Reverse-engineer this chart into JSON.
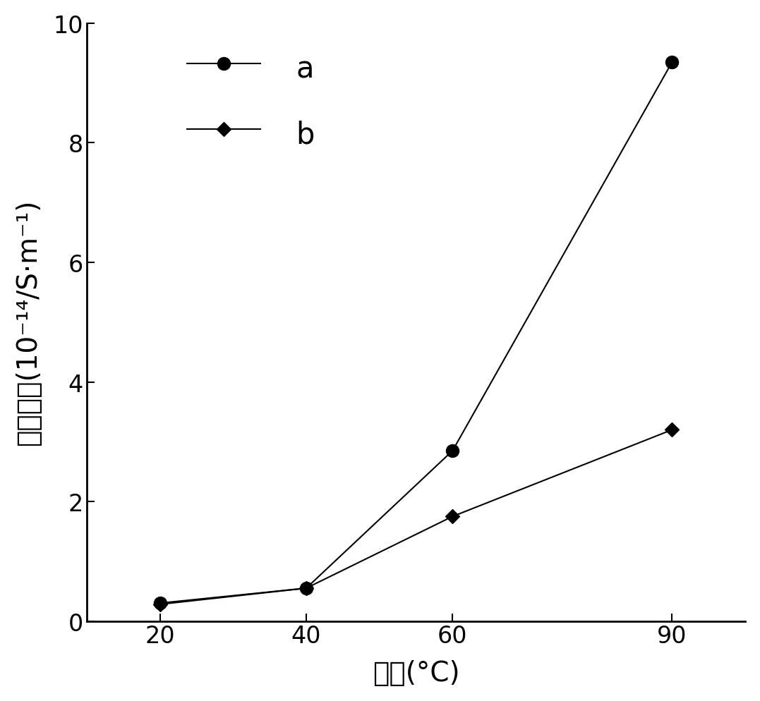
{
  "series_a": {
    "x": [
      20,
      40,
      60,
      90
    ],
    "y": [
      0.3,
      0.55,
      2.85,
      9.35
    ],
    "label": "a",
    "marker": "o",
    "markersize": 13
  },
  "series_b": {
    "x": [
      20,
      40,
      60,
      90
    ],
    "y": [
      0.28,
      0.55,
      1.75,
      3.2
    ],
    "label": "b",
    "marker": "D",
    "markersize": 10
  },
  "xlabel": "温度(°C)",
  "ylabel_chinese": "直流电导",
  "ylabel_unit": "(10⁻¹⁴/S·m⁻¹)",
  "xlim": [
    10,
    100
  ],
  "ylim": [
    0,
    10
  ],
  "xticks": [
    20,
    40,
    60,
    90
  ],
  "yticks": [
    0,
    2,
    4,
    6,
    8,
    10
  ],
  "background_color": "#ffffff",
  "line_color": "#000000",
  "linewidth": 1.5,
  "legend_label_a": "a",
  "legend_label_b": "b",
  "tick_labelsize": 24,
  "label_fontsize": 28,
  "legend_fontsize": 30
}
